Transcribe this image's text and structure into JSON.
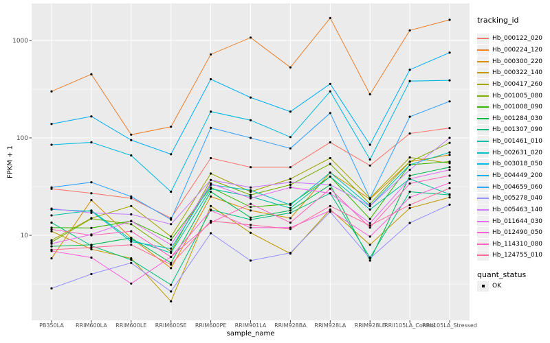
{
  "figure": {
    "background": "#FFFFFF",
    "panel_background": "#EBEBEB",
    "gridline_color": "#FFFFFF",
    "tick_color": "#333333",
    "tick_label_color": "#4D4D4D",
    "point_color": "#000000"
  },
  "legend": {
    "tracking_title": "tracking_id",
    "quant_title": "quant_status",
    "quant_items": [
      {
        "label": "OK"
      }
    ],
    "key_background": "#EFEFEF",
    "position": "right"
  },
  "chart_data": {
    "type": "line",
    "title": "",
    "xlabel": "sample_name",
    "ylabel": "FPKM + 1",
    "y_scale": "log10",
    "grid": true,
    "legend_position": "right",
    "ylim_approx": [
      1.35,
      2400
    ],
    "y_ticks": [
      {
        "label": "1000",
        "value": 1000
      },
      {
        "label": "100",
        "value": 100
      },
      {
        "label": "10",
        "value": 10
      }
    ],
    "y_minor_gridlines": [
      316,
      31.6,
      3.16
    ],
    "categories": [
      "PB350LA",
      "RRIM600LA",
      "RRIM600LE",
      "RRIM600SE",
      "RRIM600PE",
      "RRIM901LA",
      "RRIM928BA",
      "RRIM928LA",
      "RRIM928LE",
      "RRII105LA_Control",
      "RRII105LA_Stressed"
    ],
    "series": [
      {
        "name": "Hb_000122_020",
        "color": "#F8766D",
        "quant_status": "OK",
        "values": [
          30,
          27,
          24,
          15,
          62,
          50,
          50,
          90,
          52,
          111,
          126
        ]
      },
      {
        "name": "Hb_000224_120",
        "color": "#EA8331",
        "quant_status": "OK",
        "values": [
          300,
          450,
          108,
          130,
          720,
          1070,
          530,
          1700,
          280,
          1270,
          1630
        ]
      },
      {
        "name": "Hb_000300_220",
        "color": "#D89000",
        "quant_status": "OK",
        "values": [
          5.8,
          23,
          9.4,
          4.6,
          25,
          18,
          15,
          44,
          23.5,
          57,
          67
        ]
      },
      {
        "name": "Hb_000322_140",
        "color": "#C09B00",
        "quant_status": "OK",
        "values": [
          11,
          7.2,
          5.8,
          2.1,
          20,
          10.6,
          6.5,
          18.4,
          8,
          19,
          24.5
        ]
      },
      {
        "name": "Hb_000417_260",
        "color": "#A3A500",
        "quant_status": "OK",
        "values": [
          8.9,
          15,
          20,
          9.7,
          43,
          28,
          38,
          62,
          24,
          63,
          55
        ]
      },
      {
        "name": "Hb_001005_080",
        "color": "#7CAE00",
        "quant_status": "OK",
        "values": [
          8.5,
          14.8,
          13,
          6.8,
          37,
          26,
          33,
          54,
          21,
          57,
          89
        ]
      },
      {
        "name": "Hb_001008_090",
        "color": "#39B600",
        "quant_status": "OK",
        "values": [
          12,
          11.9,
          14,
          9,
          31,
          19.5,
          21,
          40,
          14.7,
          53,
          57
        ]
      },
      {
        "name": "Hb_001284_030",
        "color": "#00BB4E",
        "quant_status": "OK",
        "values": [
          7.7,
          8,
          9.4,
          5.2,
          28,
          15.2,
          18,
          33,
          5.5,
          41,
          50
        ]
      },
      {
        "name": "Hb_001307_090",
        "color": "#00BF7D",
        "quant_status": "OK",
        "values": [
          13.5,
          7.8,
          5.6,
          3.1,
          18.3,
          14.5,
          17,
          27,
          5.9,
          28,
          26
        ]
      },
      {
        "name": "Hb_001461_010",
        "color": "#00C1A3",
        "quant_status": "OK",
        "values": [
          16,
          18,
          9,
          6.6,
          30,
          25,
          19,
          40,
          18.4,
          38,
          26.3
        ]
      },
      {
        "name": "Hb_002631_020",
        "color": "#00BFC4",
        "quant_status": "OK",
        "values": [
          18.4,
          17.7,
          8.6,
          7.3,
          33,
          29,
          20.5,
          44,
          20,
          53,
          71
        ]
      },
      {
        "name": "Hb_003018_050",
        "color": "#00BAE0",
        "quant_status": "OK",
        "values": [
          85,
          90,
          66,
          28,
          186,
          152,
          102,
          300,
          60,
          383,
          390
        ]
      },
      {
        "name": "Hb_004449_200",
        "color": "#00B0F6",
        "quant_status": "OK",
        "values": [
          139,
          166,
          95,
          68,
          400,
          260,
          186,
          358,
          85,
          500,
          750
        ]
      },
      {
        "name": "Hb_004659_060",
        "color": "#35A2FF",
        "quant_status": "OK",
        "values": [
          31,
          35,
          25,
          14.5,
          127,
          100,
          78,
          180,
          24,
          165,
          237
        ]
      },
      {
        "name": "Hb_005278_040",
        "color": "#9590FF",
        "quant_status": "OK",
        "values": [
          2.85,
          4.0,
          5.2,
          2.65,
          10.5,
          5.5,
          6.6,
          17.4,
          5.8,
          13.4,
          20.6
        ]
      },
      {
        "name": "Hb_005463_140",
        "color": "#C77CFF",
        "quant_status": "OK",
        "values": [
          18.8,
          17,
          16.4,
          13,
          37,
          31,
          35,
          33,
          20,
          47,
          100
        ]
      },
      {
        "name": "Hb_011644_030",
        "color": "#E76BF3",
        "quant_status": "OK",
        "values": [
          8.2,
          10.2,
          14,
          8,
          34,
          24,
          31,
          27,
          13.3,
          38,
          47
        ]
      },
      {
        "name": "Hb_012490_050",
        "color": "#FA62DB",
        "quant_status": "OK",
        "values": [
          6.9,
          5.9,
          3.2,
          6,
          18,
          12,
          12,
          17.9,
          9.7,
          24.5,
          34.5
        ]
      },
      {
        "name": "Hb_114310_080",
        "color": "#FF62BC",
        "quant_status": "OK",
        "values": [
          11.5,
          10,
          11,
          6,
          13.5,
          21,
          13.5,
          30,
          12,
          34,
          41
        ]
      },
      {
        "name": "Hb_124755_010",
        "color": "#FF6A98",
        "quant_status": "OK",
        "values": [
          7.1,
          7.5,
          8,
          5,
          14,
          12.8,
          11.6,
          20,
          12.6,
          20.5,
          30.4
        ]
      }
    ]
  }
}
